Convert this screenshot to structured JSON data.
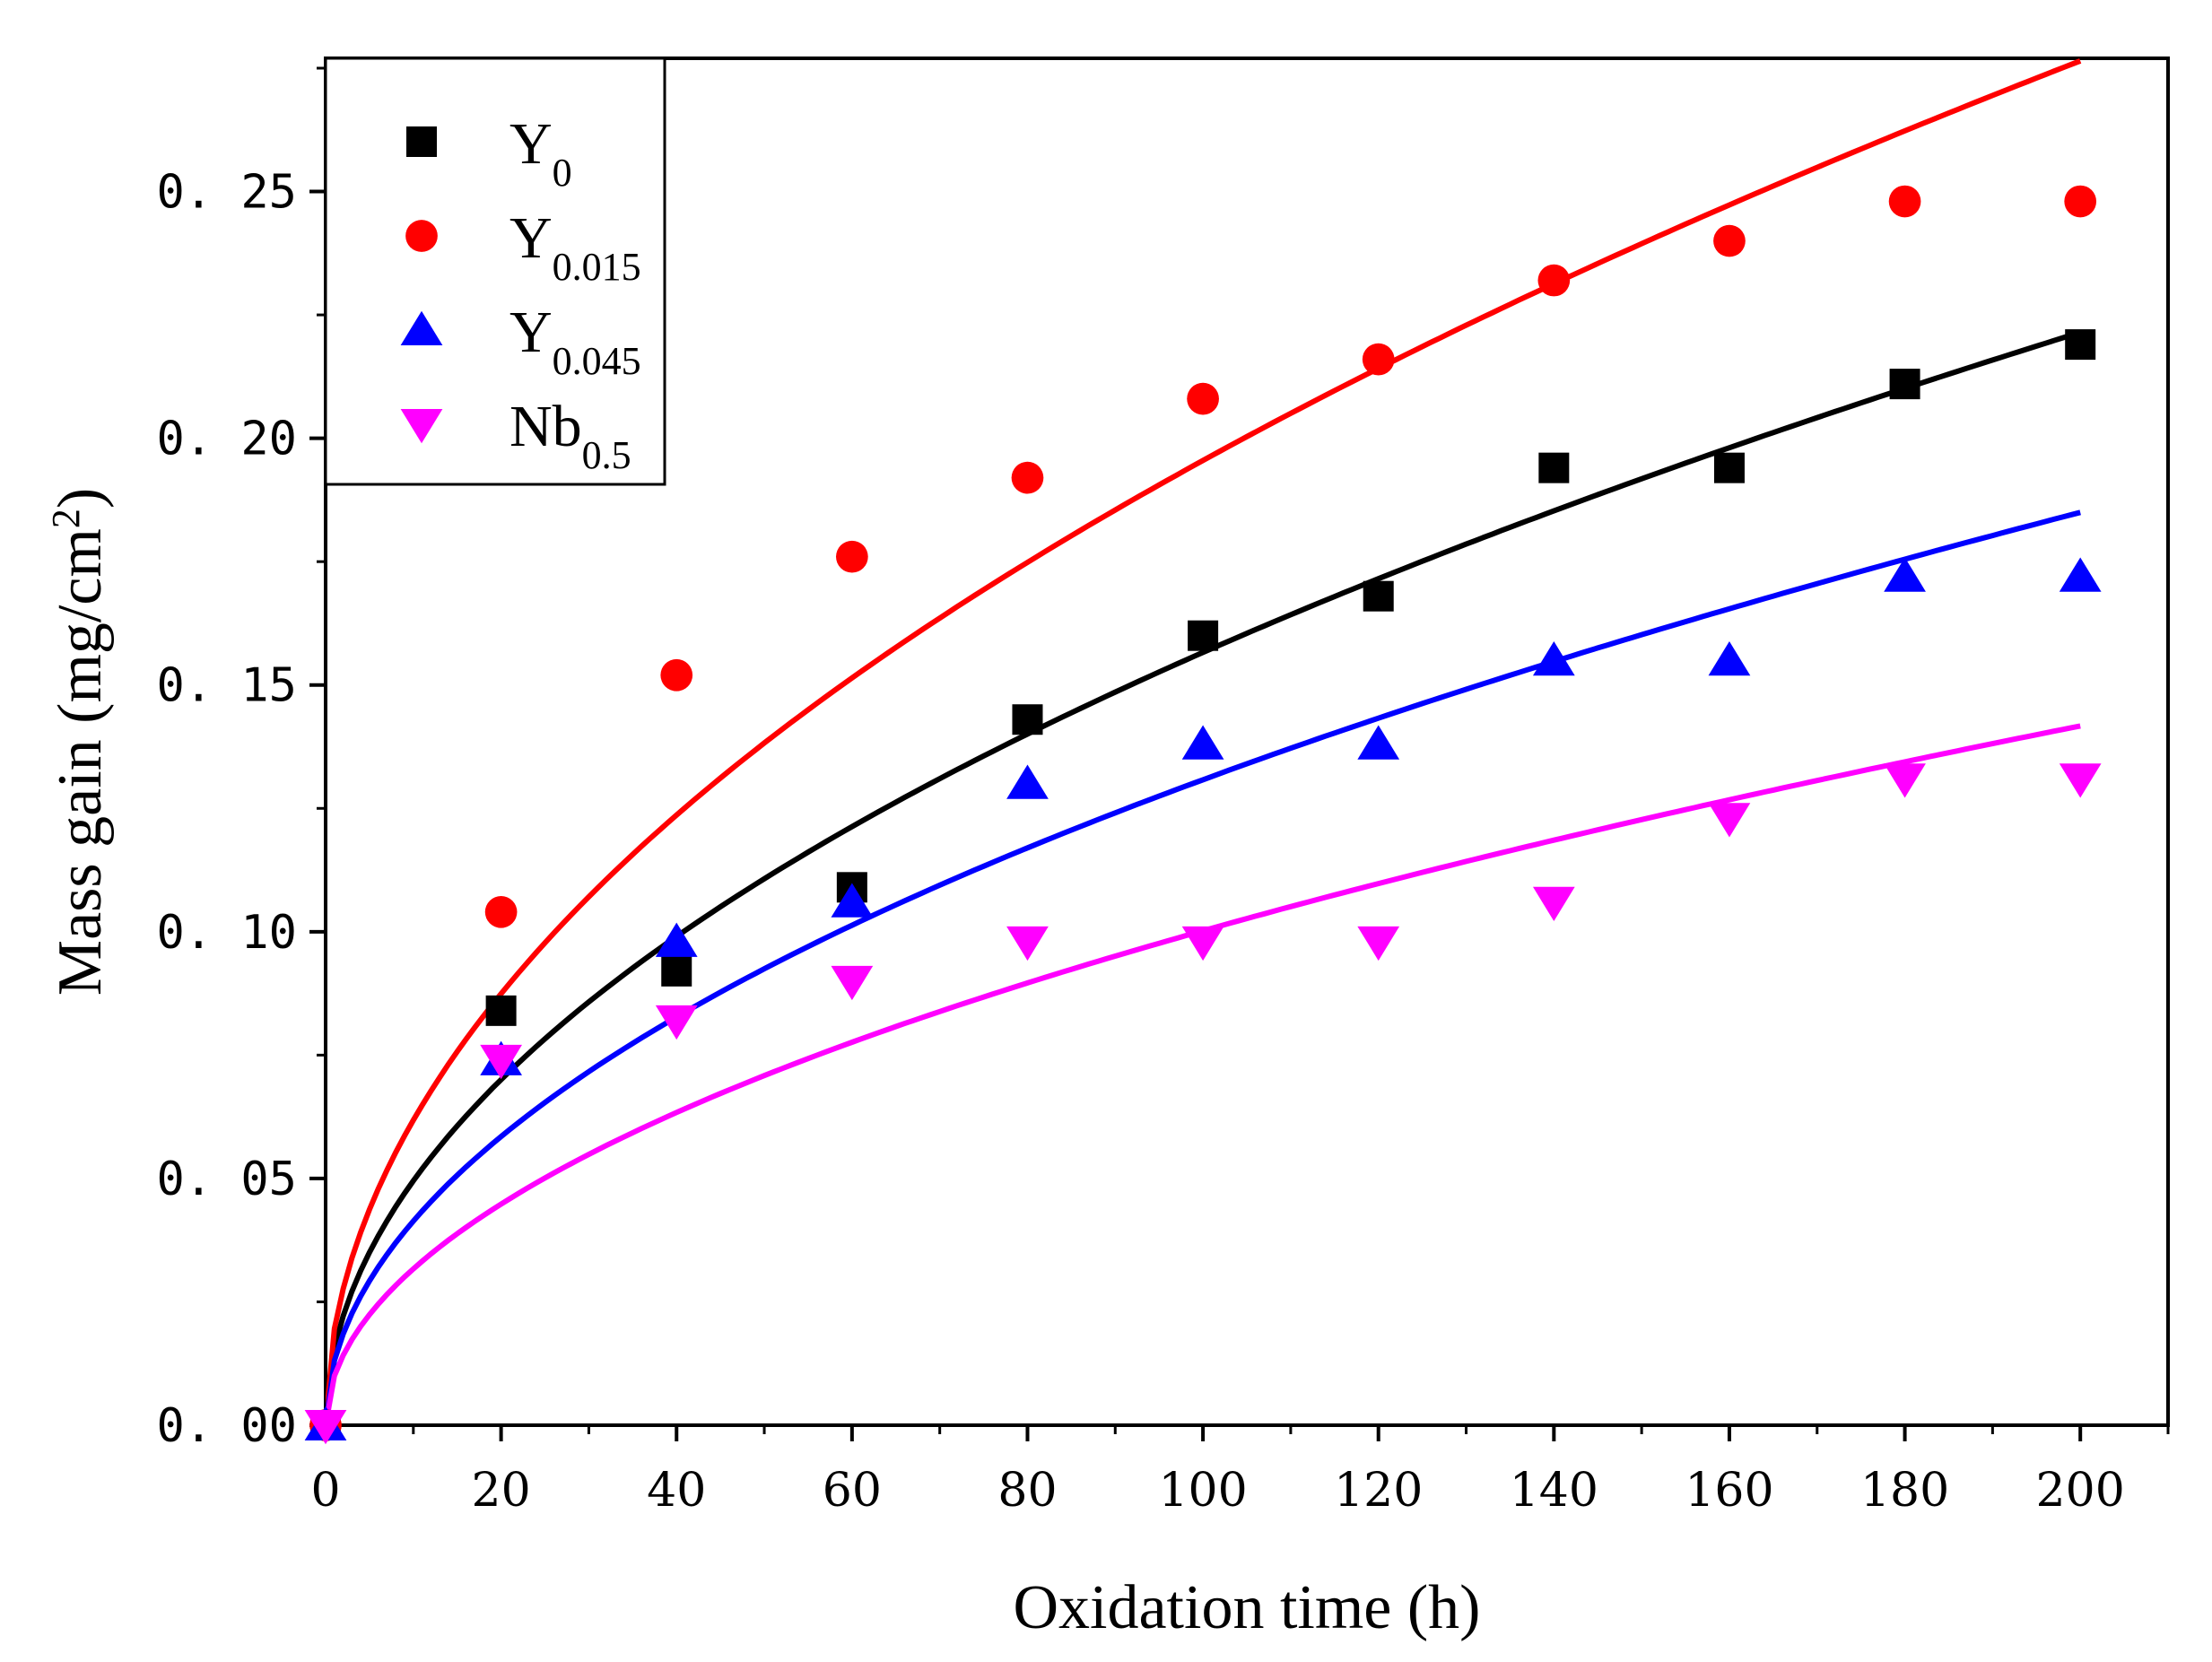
{
  "chart_data": {
    "type": "scatter",
    "xlabel": "Oxidation time (h)",
    "ylabel_main": "Mass gain (mg/cm",
    "ylabel_sup": "2",
    "ylabel_close": ")",
    "xlim": [
      0,
      210
    ],
    "ylim": [
      0,
      0.277
    ],
    "xticks": [
      0,
      20,
      40,
      60,
      80,
      100,
      120,
      140,
      160,
      180,
      200
    ],
    "xtick_labels": [
      "0",
      "20",
      "40",
      "60",
      "80",
      "100",
      "120",
      "140",
      "160",
      "180",
      "200"
    ],
    "yticks": [
      0,
      0.05,
      0.1,
      0.15,
      0.2,
      0.25
    ],
    "ytick_labels": [
      "0. 00",
      "0. 05",
      "0. 10",
      "0. 15",
      "0. 20",
      "0. 25"
    ],
    "legend_position": "top-left",
    "grid": false,
    "x": [
      0,
      20,
      40,
      60,
      80,
      100,
      120,
      140,
      160,
      180,
      200
    ],
    "series": [
      {
        "name": "Y0",
        "name_base": "Y",
        "name_sub": "0",
        "marker": "square",
        "color": "#000000",
        "values": [
          0,
          0.084,
          0.092,
          0.109,
          0.143,
          0.16,
          0.168,
          0.194,
          0.194,
          0.211,
          0.219
        ],
        "fit": {
          "a": 0.01566,
          "n": 0.5
        }
      },
      {
        "name": "Y0.015",
        "name_base": "Y",
        "name_sub": "0.015",
        "marker": "circle",
        "color": "#ff0000",
        "values": [
          0,
          0.104,
          0.152,
          0.176,
          0.192,
          0.208,
          0.216,
          0.232,
          0.24,
          0.248,
          0.248
        ],
        "fit": {
          "a": 0.01955,
          "n": 0.5
        }
      },
      {
        "name": "Y0.045",
        "name_base": "Y",
        "name_sub": "0.045",
        "marker": "triangle-up",
        "color": "#0000ff",
        "values": [
          0,
          0.074,
          0.098,
          0.106,
          0.13,
          0.138,
          0.138,
          0.155,
          0.155,
          0.172,
          0.172
        ],
        "fit": {
          "a": 0.01308,
          "n": 0.5
        }
      },
      {
        "name": "Nb0.5",
        "name_base": "Nb",
        "name_sub": "0.5",
        "marker": "triangle-down",
        "color": "#ff00ff",
        "values": [
          0,
          0.074,
          0.082,
          0.09,
          0.098,
          0.098,
          0.098,
          0.106,
          0.123,
          0.131,
          0.131
        ],
        "fit": {
          "a": 0.01002,
          "n": 0.5
        }
      }
    ]
  }
}
